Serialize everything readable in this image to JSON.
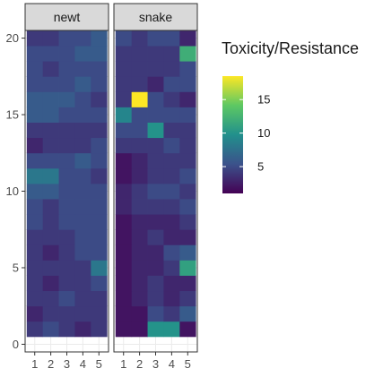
{
  "chart_data": {
    "type": "heatmap",
    "title": "",
    "xlabel": "",
    "ylabel": "",
    "facets": [
      "newt",
      "snake"
    ],
    "x_categories": [
      1,
      2,
      3,
      4,
      5
    ],
    "y_ticks": [
      0,
      5,
      10,
      15,
      20
    ],
    "ylim": [
      -0.5,
      20.5
    ],
    "legend": {
      "title": "Toxicity/Resistance",
      "ticks": [
        5,
        10,
        15
      ],
      "range": [
        1,
        18.5
      ],
      "placement": "right",
      "colorscale": [
        "#440154",
        "#3b528b",
        "#21908c",
        "#5dc863",
        "#fde725"
      ]
    },
    "grid": true,
    "rows_note": "matrix rows are y = 1..20 from bottom to top; columns are x = 1..5",
    "newt": [
      [
        4,
        5,
        4,
        3,
        4
      ],
      [
        3,
        4,
        4,
        4,
        4
      ],
      [
        4,
        4,
        5,
        4,
        4
      ],
      [
        4,
        3,
        4,
        4,
        5
      ],
      [
        4,
        4,
        4,
        4,
        8
      ],
      [
        4,
        3,
        4,
        5,
        5
      ],
      [
        4,
        4,
        4,
        5,
        5
      ],
      [
        5,
        4,
        5,
        5,
        5
      ],
      [
        5,
        4,
        5,
        5,
        5
      ],
      [
        6,
        6,
        5,
        5,
        5
      ],
      [
        8,
        8,
        5,
        5,
        4
      ],
      [
        5,
        5,
        5,
        6,
        5
      ],
      [
        3,
        4,
        4,
        4,
        5
      ],
      [
        4,
        4,
        4,
        4,
        4
      ],
      [
        6,
        6,
        5,
        5,
        5
      ],
      [
        6,
        6,
        6,
        5,
        4
      ],
      [
        5,
        5,
        5,
        6,
        5
      ],
      [
        5,
        4,
        5,
        5,
        5
      ],
      [
        5,
        5,
        5,
        6,
        6
      ],
      [
        4,
        4,
        5,
        5,
        6
      ]
    ],
    "snake": [
      [
        2,
        2,
        10,
        10,
        2
      ],
      [
        2,
        2,
        5,
        4,
        6
      ],
      [
        2,
        3,
        4,
        3,
        4
      ],
      [
        2,
        3,
        4,
        3,
        3
      ],
      [
        2,
        3,
        3,
        4,
        11
      ],
      [
        2,
        3,
        3,
        5,
        6
      ],
      [
        2,
        3,
        4,
        3,
        3
      ],
      [
        2,
        3,
        3,
        3,
        4
      ],
      [
        3,
        4,
        4,
        4,
        5
      ],
      [
        3,
        4,
        5,
        5,
        4
      ],
      [
        2,
        3,
        4,
        4,
        5
      ],
      [
        2,
        3,
        4,
        4,
        4
      ],
      [
        4,
        4,
        4,
        5,
        4
      ],
      [
        5,
        5,
        10,
        4,
        4
      ],
      [
        9,
        5,
        5,
        5,
        5
      ],
      [
        4,
        18.5,
        5,
        4,
        3
      ],
      [
        4,
        4,
        3,
        5,
        5
      ],
      [
        4,
        4,
        4,
        4,
        5
      ],
      [
        4,
        4,
        4,
        4,
        12
      ],
      [
        5,
        4,
        5,
        5,
        3
      ]
    ]
  }
}
